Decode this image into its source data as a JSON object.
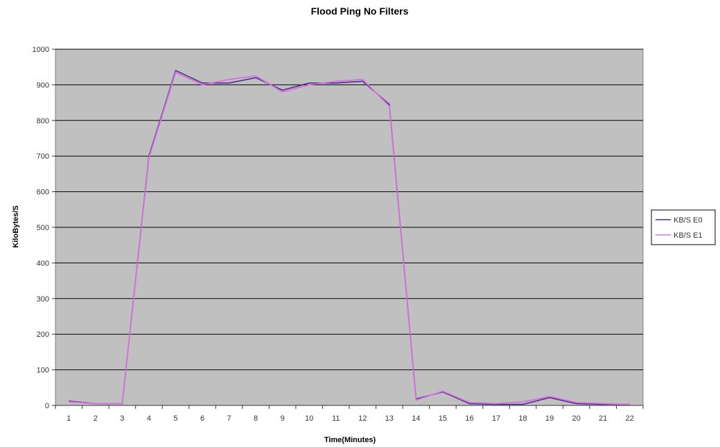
{
  "chart_data": {
    "type": "line",
    "title": "Flood Ping No Filters",
    "xlabel": "Time(Minutes)",
    "ylabel": "KiloBytes/S",
    "categories": [
      "1",
      "2",
      "3",
      "4",
      "5",
      "6",
      "7",
      "8",
      "9",
      "10",
      "11",
      "12",
      "13",
      "14",
      "15",
      "16",
      "17",
      "18",
      "19",
      "20",
      "21",
      "22"
    ],
    "ylim": [
      0,
      1000
    ],
    "yticks": [
      "0",
      "100",
      "200",
      "300",
      "400",
      "500",
      "600",
      "700",
      "800",
      "900",
      "1000"
    ],
    "grid": true,
    "legend_position": "right",
    "series": [
      {
        "name": "KB/S E0",
        "color": "#4b2d8f",
        "values": [
          12,
          5,
          5,
          700,
          940,
          905,
          905,
          920,
          885,
          905,
          905,
          910,
          845,
          18,
          38,
          5,
          3,
          3,
          22,
          5,
          3,
          3
        ]
      },
      {
        "name": "KB/S E1",
        "color": "#d96fe0",
        "values": [
          10,
          5,
          5,
          695,
          935,
          900,
          915,
          925,
          880,
          900,
          910,
          915,
          840,
          15,
          40,
          8,
          5,
          10,
          25,
          8,
          5,
          3
        ]
      }
    ]
  }
}
